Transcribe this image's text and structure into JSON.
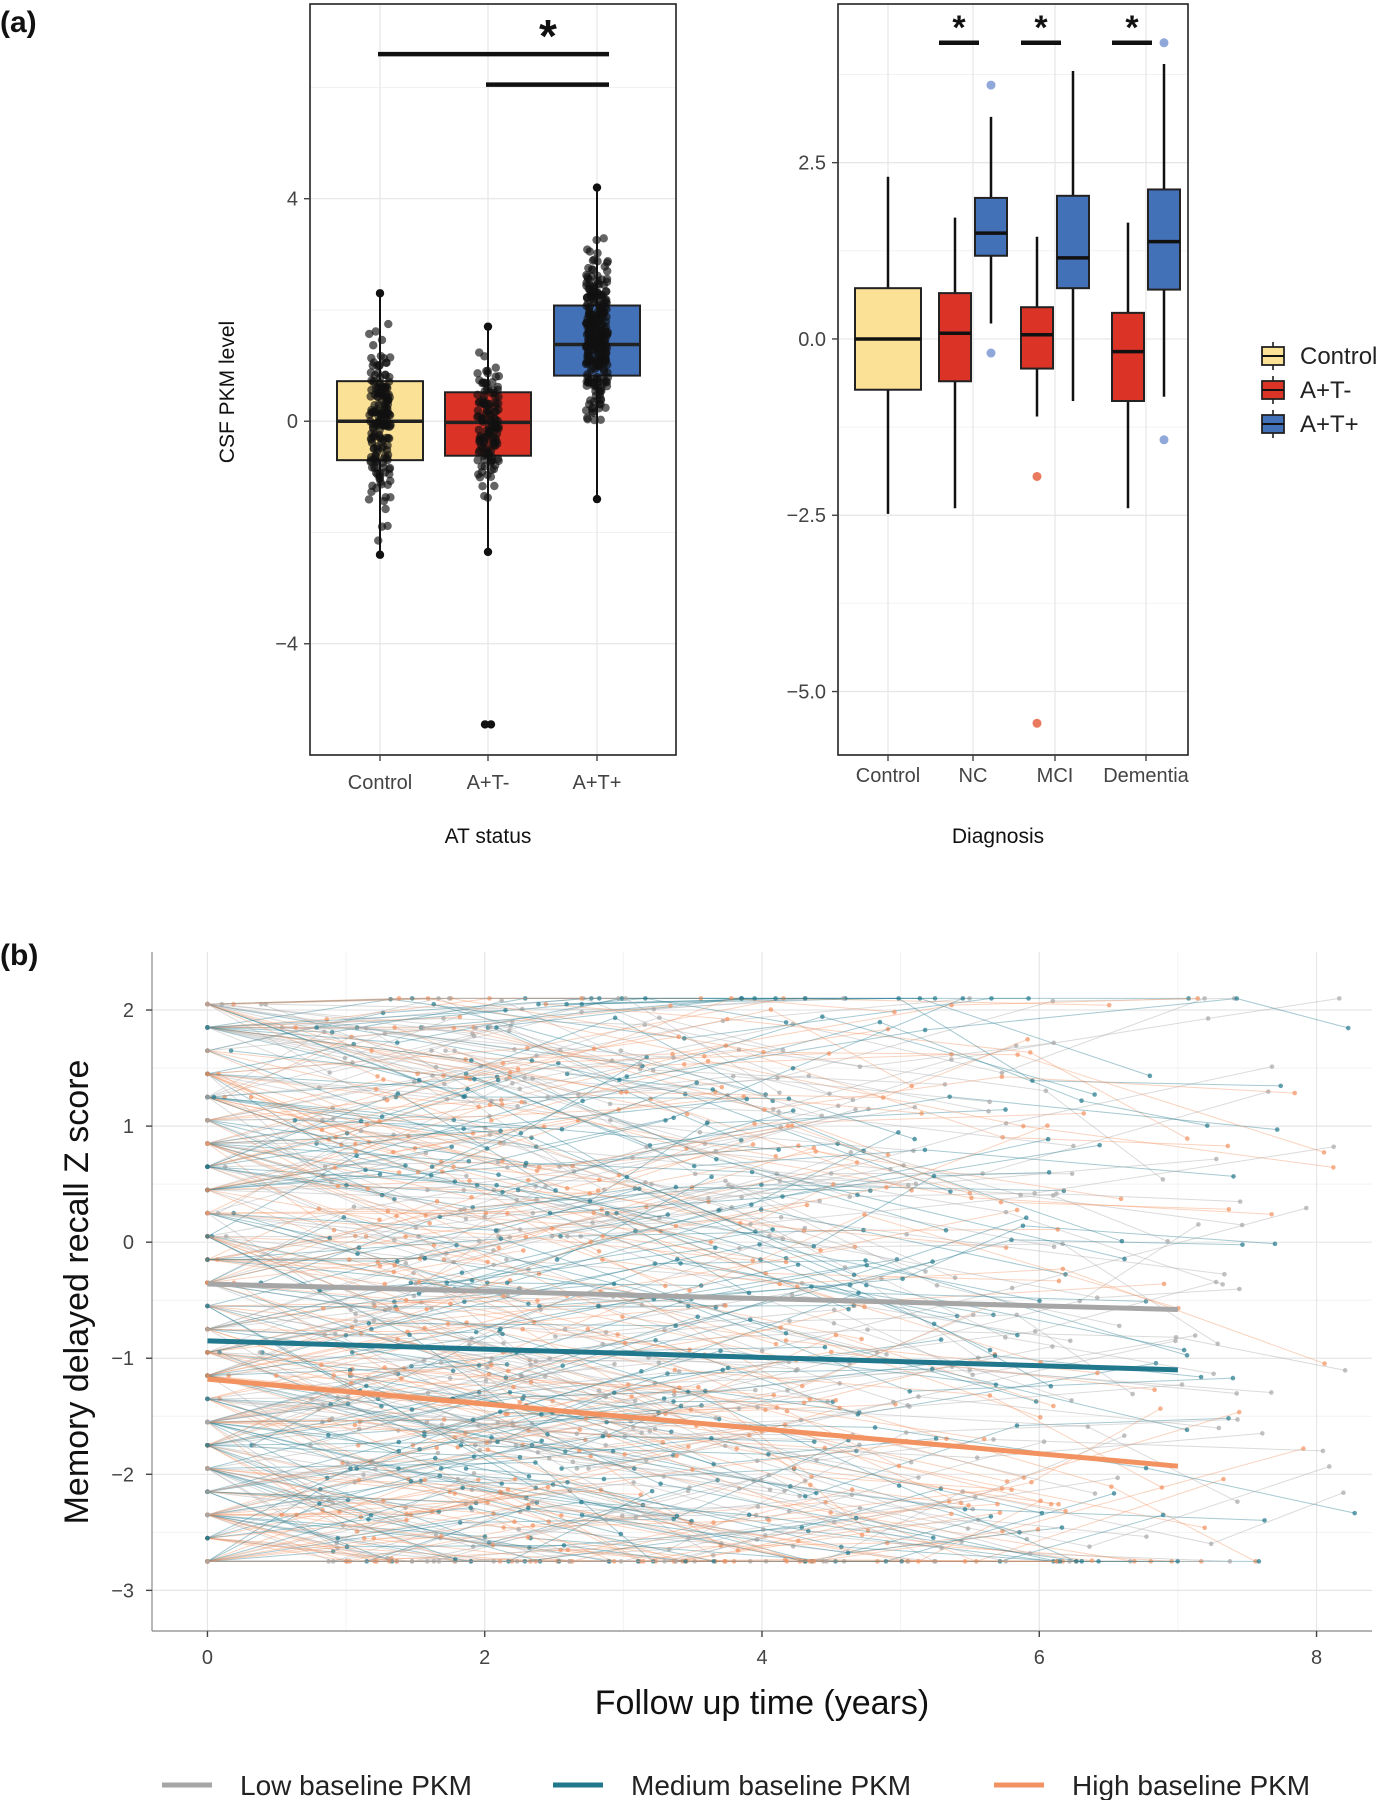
{
  "panel_a_label": "(a)",
  "panel_b_label": "(b)",
  "chart_data": [
    {
      "type": "box",
      "id": "at_status",
      "xlabel": "AT status",
      "ylabel": "CSF PKM level",
      "categories": [
        "Control",
        "A+T-",
        "A+T+"
      ],
      "yticks": [
        -4,
        0,
        4
      ],
      "ytick_labels": [
        "−4",
        "0",
        "4"
      ],
      "ylim": [
        -6.0,
        7.5
      ],
      "boxes": [
        {
          "group": "Control",
          "q1": -0.7,
          "median": 0.0,
          "q3": 0.72,
          "whisker_low": -2.4,
          "whisker_high": 2.3,
          "color": "#FBE196"
        },
        {
          "group": "A+T-",
          "q1": -0.62,
          "median": -0.02,
          "q3": 0.52,
          "whisker_low": -2.35,
          "whisker_high": 1.7,
          "color": "#DC3327"
        },
        {
          "group": "A+T+",
          "q1": 0.82,
          "median": 1.38,
          "q3": 2.08,
          "whisker_low": -1.4,
          "whisker_high": 4.2,
          "color": "#4371B8"
        }
      ],
      "outliers": [
        {
          "group": "A+T-",
          "value": -5.45
        }
      ],
      "significance": {
        "marker": "*",
        "brackets": [
          {
            "from": "Control",
            "to": "A+T+",
            "y": 6.6
          },
          {
            "from": "A+T-",
            "to": "A+T+",
            "y": 6.05
          }
        ]
      }
    },
    {
      "type": "box",
      "id": "diagnosis",
      "xlabel": "Diagnosis",
      "ylabel": "",
      "categories": [
        "Control",
        "NC",
        "MCI",
        "Dementia"
      ],
      "yticks": [
        -5.0,
        -2.5,
        0.0,
        2.5
      ],
      "ytick_labels": [
        "−5.0",
        "−2.5",
        "0.0",
        "2.5"
      ],
      "ylim": [
        -5.9,
        4.75
      ],
      "boxes": [
        {
          "group": "Control",
          "status": "Control",
          "q1": -0.72,
          "median": 0.0,
          "q3": 0.72,
          "whisker_low": -2.48,
          "whisker_high": 2.3,
          "color": "#FBE196"
        },
        {
          "group": "NC",
          "status": "A+T-",
          "q1": -0.6,
          "median": 0.08,
          "q3": 0.65,
          "whisker_low": -2.4,
          "whisker_high": 1.72,
          "color": "#DC3327"
        },
        {
          "group": "NC",
          "status": "A+T+",
          "q1": 1.18,
          "median": 1.5,
          "q3": 2.0,
          "whisker_low": 0.22,
          "whisker_high": 3.15,
          "color": "#4371B8"
        },
        {
          "group": "MCI",
          "status": "A+T-",
          "q1": -0.42,
          "median": 0.06,
          "q3": 0.45,
          "whisker_low": -1.1,
          "whisker_high": 1.45,
          "color": "#DC3327"
        },
        {
          "group": "MCI",
          "status": "A+T+",
          "q1": 0.72,
          "median": 1.15,
          "q3": 2.03,
          "whisker_low": -0.88,
          "whisker_high": 3.8,
          "color": "#4371B8"
        },
        {
          "group": "Dementia",
          "status": "A+T-",
          "q1": -0.88,
          "median": -0.18,
          "q3": 0.37,
          "whisker_low": -2.4,
          "whisker_high": 1.65,
          "color": "#DC3327"
        },
        {
          "group": "Dementia",
          "status": "A+T+",
          "q1": 0.7,
          "median": 1.38,
          "q3": 2.12,
          "whisker_low": -0.82,
          "whisker_high": 3.9,
          "color": "#4371B8"
        }
      ],
      "outliers": [
        {
          "group": "NC",
          "status": "A+T+",
          "value": 3.6
        },
        {
          "group": "NC",
          "status": "A+T+",
          "value": -0.2
        },
        {
          "group": "MCI",
          "status": "A+T-",
          "value": -1.95
        },
        {
          "group": "MCI",
          "status": "A+T-",
          "value": -5.45
        },
        {
          "group": "Dementia",
          "status": "A+T+",
          "value": 4.2
        },
        {
          "group": "Dementia",
          "status": "A+T+",
          "value": -1.43
        }
      ],
      "significance": {
        "marker": "*",
        "groups": [
          "NC",
          "MCI",
          "Dementia"
        ],
        "y": 4.2
      },
      "legend": {
        "placement": "right",
        "entries": [
          {
            "label": "Control",
            "color": "#FBE196"
          },
          {
            "label": "A+T-",
            "color": "#DC3327"
          },
          {
            "label": "A+T+",
            "color": "#4371B8"
          }
        ]
      }
    },
    {
      "type": "line",
      "id": "memory_trajectories",
      "xlabel": "Follow up time (years)",
      "ylabel": "Memory delayed recall Z score",
      "xlim": [
        -0.4,
        8.4
      ],
      "ylim": [
        -3.35,
        2.5
      ],
      "xticks": [
        0,
        2,
        4,
        6,
        8
      ],
      "yticks": [
        -3,
        -2,
        -1,
        0,
        1,
        2
      ],
      "ytick_labels": [
        "−3",
        "−2",
        "−1",
        "0",
        "1",
        "2"
      ],
      "series": [
        {
          "name": "Low baseline PKM",
          "color": "#A6A6A6",
          "x": [
            0,
            7
          ],
          "y": [
            -0.36,
            -0.58
          ]
        },
        {
          "name": "Medium baseline PKM",
          "color": "#21788C",
          "x": [
            0,
            7
          ],
          "y": [
            -0.85,
            -1.1
          ]
        },
        {
          "name": "High baseline PKM",
          "color": "#F29260",
          "x": [
            0,
            7
          ],
          "y": [
            -1.18,
            -1.93
          ]
        }
      ],
      "individual_trajectories": "thin semi-transparent per-participant lines and points in series colors",
      "legend": {
        "placement": "bottom"
      }
    }
  ]
}
